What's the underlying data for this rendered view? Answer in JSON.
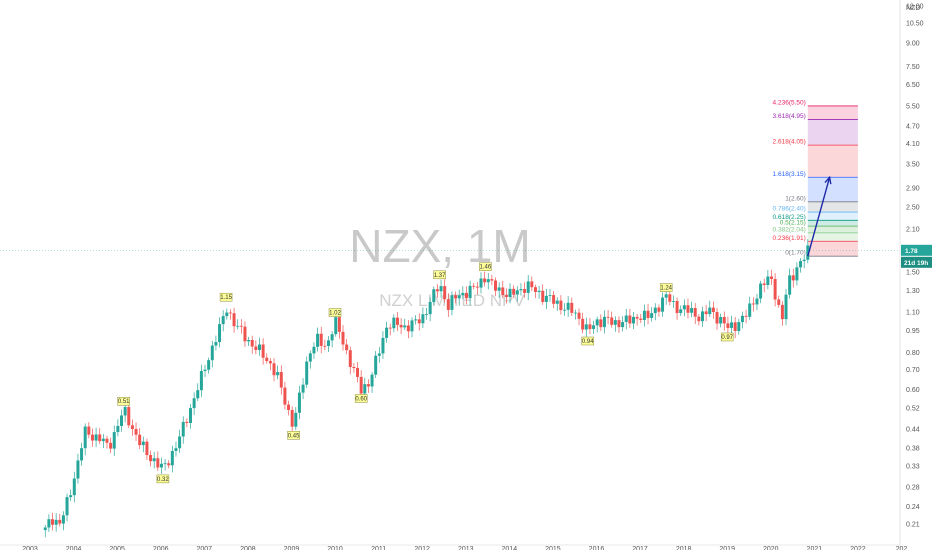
{
  "chart_data": {
    "type": "candlestick",
    "title": "NZX, 1M",
    "subtitle": "NZX LIMITED NPV",
    "currency": "NZD",
    "last_price": "1.78",
    "countdown": "21d 19h",
    "y_scale": "log",
    "grid": false,
    "ylim": [
      0.185,
      12.2
    ],
    "xlim": [
      2003.0,
      2022.92
    ],
    "y_ticks": [
      "12.00",
      "10.50",
      "9.00",
      "7.50",
      "6.50",
      "5.50",
      "4.70",
      "4.10",
      "3.50",
      "2.90",
      "2.50",
      "2.10",
      "1.78",
      "1.50",
      "1.30",
      "1.10",
      "0.95",
      "0.80",
      "0.70",
      "0.60",
      "0.52",
      "0.44",
      "0.38",
      "0.33",
      "0.28",
      "0.24",
      "0.21"
    ],
    "x_ticks": [
      "2003",
      "2004",
      "2005",
      "2006",
      "2007",
      "2008",
      "2009",
      "2010",
      "2011",
      "2012",
      "2013",
      "2014",
      "2015",
      "2016",
      "2017",
      "2018",
      "2019",
      "2020",
      "2021",
      "2022",
      "202"
    ],
    "up_color": "#26a69a",
    "down_color": "#ef5350",
    "price_path": [
      {
        "t": 2003.35,
        "p": 0.2
      },
      {
        "t": 2003.5,
        "p": 0.22
      },
      {
        "t": 2003.7,
        "p": 0.21
      },
      {
        "t": 2003.9,
        "p": 0.26
      },
      {
        "t": 2004.1,
        "p": 0.34
      },
      {
        "t": 2004.25,
        "p": 0.43
      },
      {
        "t": 2004.4,
        "p": 0.42
      },
      {
        "t": 2004.6,
        "p": 0.41
      },
      {
        "t": 2004.8,
        "p": 0.38
      },
      {
        "t": 2005.0,
        "p": 0.45
      },
      {
        "t": 2005.15,
        "p": 0.51
      },
      {
        "t": 2005.3,
        "p": 0.46
      },
      {
        "t": 2005.5,
        "p": 0.4
      },
      {
        "t": 2005.7,
        "p": 0.36
      },
      {
        "t": 2005.9,
        "p": 0.34
      },
      {
        "t": 2006.05,
        "p": 0.32
      },
      {
        "t": 2006.2,
        "p": 0.35
      },
      {
        "t": 2006.4,
        "p": 0.4
      },
      {
        "t": 2006.6,
        "p": 0.48
      },
      {
        "t": 2006.8,
        "p": 0.58
      },
      {
        "t": 2007.0,
        "p": 0.7
      },
      {
        "t": 2007.2,
        "p": 0.85
      },
      {
        "t": 2007.4,
        "p": 1.0
      },
      {
        "t": 2007.5,
        "p": 1.15
      },
      {
        "t": 2007.7,
        "p": 1.0
      },
      {
        "t": 2007.9,
        "p": 0.92
      },
      {
        "t": 2008.1,
        "p": 0.85
      },
      {
        "t": 2008.3,
        "p": 0.8
      },
      {
        "t": 2008.5,
        "p": 0.74
      },
      {
        "t": 2008.7,
        "p": 0.65
      },
      {
        "t": 2008.9,
        "p": 0.52
      },
      {
        "t": 2009.05,
        "p": 0.45
      },
      {
        "t": 2009.2,
        "p": 0.58
      },
      {
        "t": 2009.4,
        "p": 0.8
      },
      {
        "t": 2009.6,
        "p": 0.88
      },
      {
        "t": 2009.8,
        "p": 0.84
      },
      {
        "t": 2010.0,
        "p": 1.02
      },
      {
        "t": 2010.15,
        "p": 0.9
      },
      {
        "t": 2010.3,
        "p": 0.78
      },
      {
        "t": 2010.5,
        "p": 0.65
      },
      {
        "t": 2010.6,
        "p": 0.6
      },
      {
        "t": 2010.8,
        "p": 0.64
      },
      {
        "t": 2011.0,
        "p": 0.8
      },
      {
        "t": 2011.2,
        "p": 1.0
      },
      {
        "t": 2011.4,
        "p": 1.0
      },
      {
        "t": 2011.6,
        "p": 0.98
      },
      {
        "t": 2011.8,
        "p": 1.0
      },
      {
        "t": 2012.0,
        "p": 1.05
      },
      {
        "t": 2012.2,
        "p": 1.2
      },
      {
        "t": 2012.4,
        "p": 1.37
      },
      {
        "t": 2012.6,
        "p": 1.15
      },
      {
        "t": 2012.8,
        "p": 1.25
      },
      {
        "t": 2013.0,
        "p": 1.28
      },
      {
        "t": 2013.2,
        "p": 1.32
      },
      {
        "t": 2013.45,
        "p": 1.46
      },
      {
        "t": 2013.6,
        "p": 1.35
      },
      {
        "t": 2013.8,
        "p": 1.3
      },
      {
        "t": 2014.0,
        "p": 1.25
      },
      {
        "t": 2014.2,
        "p": 1.3
      },
      {
        "t": 2014.4,
        "p": 1.35
      },
      {
        "t": 2014.6,
        "p": 1.3
      },
      {
        "t": 2014.8,
        "p": 1.24
      },
      {
        "t": 2015.0,
        "p": 1.2
      },
      {
        "t": 2015.2,
        "p": 1.15
      },
      {
        "t": 2015.4,
        "p": 1.12
      },
      {
        "t": 2015.6,
        "p": 1.05
      },
      {
        "t": 2015.8,
        "p": 0.94
      },
      {
        "t": 2016.0,
        "p": 1.02
      },
      {
        "t": 2016.2,
        "p": 1.04
      },
      {
        "t": 2016.4,
        "p": 1.0
      },
      {
        "t": 2016.6,
        "p": 1.03
      },
      {
        "t": 2016.8,
        "p": 1.02
      },
      {
        "t": 2017.0,
        "p": 1.08
      },
      {
        "t": 2017.2,
        "p": 1.05
      },
      {
        "t": 2017.4,
        "p": 1.15
      },
      {
        "t": 2017.6,
        "p": 1.24
      },
      {
        "t": 2017.8,
        "p": 1.15
      },
      {
        "t": 2018.0,
        "p": 1.12
      },
      {
        "t": 2018.2,
        "p": 1.1
      },
      {
        "t": 2018.4,
        "p": 1.05
      },
      {
        "t": 2018.6,
        "p": 1.12
      },
      {
        "t": 2018.8,
        "p": 1.05
      },
      {
        "t": 2019.0,
        "p": 0.97
      },
      {
        "t": 2019.2,
        "p": 1.0
      },
      {
        "t": 2019.4,
        "p": 1.05
      },
      {
        "t": 2019.6,
        "p": 1.2
      },
      {
        "t": 2019.8,
        "p": 1.35
      },
      {
        "t": 2020.0,
        "p": 1.45
      },
      {
        "t": 2020.15,
        "p": 1.2
      },
      {
        "t": 2020.25,
        "p": 1.0
      },
      {
        "t": 2020.4,
        "p": 1.4
      },
      {
        "t": 2020.6,
        "p": 1.55
      },
      {
        "t": 2020.75,
        "p": 1.65
      },
      {
        "t": 2020.85,
        "p": 1.78
      }
    ],
    "swing_labels": [
      {
        "t": 2005.15,
        "value": "0.51",
        "pos": "above"
      },
      {
        "t": 2006.05,
        "value": "0.32",
        "pos": "below"
      },
      {
        "t": 2007.5,
        "value": "1.15",
        "pos": "above"
      },
      {
        "t": 2009.05,
        "value": "0.45",
        "pos": "below"
      },
      {
        "t": 2010.0,
        "value": "1.02",
        "pos": "above"
      },
      {
        "t": 2010.6,
        "value": "0.60",
        "pos": "below"
      },
      {
        "t": 2012.4,
        "value": "1.37",
        "pos": "above"
      },
      {
        "t": 2013.45,
        "value": "1.46",
        "pos": "above"
      },
      {
        "t": 2015.8,
        "value": "0.94",
        "pos": "below"
      },
      {
        "t": 2017.6,
        "value": "1.24",
        "pos": "above"
      },
      {
        "t": 2019.0,
        "value": "0.97",
        "pos": "below"
      }
    ],
    "fib_levels": [
      {
        "label": "0(1.70)",
        "price": 1.7,
        "color": "#787b86"
      },
      {
        "label": "0.236(1.91)",
        "price": 1.91,
        "color": "#f23645"
      },
      {
        "label": "0.382(2.04)",
        "price": 2.04,
        "color": "#81c784"
      },
      {
        "label": "0.5(2.15)",
        "price": 2.15,
        "color": "#4caf50"
      },
      {
        "label": "0.618(2.25)",
        "price": 2.25,
        "color": "#089981"
      },
      {
        "label": "0.786(2.40)",
        "price": 2.4,
        "color": "#64b5f6"
      },
      {
        "label": "1(2.60)",
        "price": 2.6,
        "color": "#787b86"
      },
      {
        "label": "1.618(3.15)",
        "price": 3.15,
        "color": "#2962ff"
      },
      {
        "label": "2.618(4.05)",
        "price": 4.05,
        "color": "#f23645"
      },
      {
        "label": "3.618(4.95)",
        "price": 4.95,
        "color": "#9c27b0"
      },
      {
        "label": "4.236(5.50)",
        "price": 5.5,
        "color": "#e91e63"
      }
    ],
    "fib_box_time": [
      2020.85,
      2022.0
    ],
    "projection_arrow": {
      "from_t": 2020.85,
      "from_p": 1.7,
      "to_t": 2021.35,
      "to_p": 3.15
    }
  }
}
